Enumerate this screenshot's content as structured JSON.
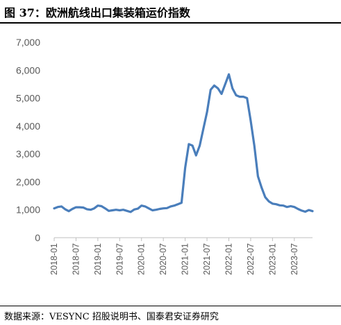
{
  "header": {
    "title": "图 37：欧洲航线出口集装箱运价指数"
  },
  "footer": {
    "source": "数据来源：VESYNC 招股说明书、国泰君安证券研究"
  },
  "colors": {
    "series": "#4A7EBB",
    "axis": "#BFBFBF",
    "tick_text": "#595959"
  },
  "chart_data": {
    "type": "line",
    "ylim": [
      0,
      7000
    ],
    "yticks": [
      0,
      1000,
      2000,
      3000,
      4000,
      5000,
      6000,
      7000
    ],
    "ytick_labels": [
      "0",
      "1,000",
      "2,000",
      "3,000",
      "4,000",
      "5,000",
      "6,000",
      "7,000"
    ],
    "xtick_labels": [
      "2018-01",
      "2018-07",
      "2019-01",
      "2019-07",
      "2020-01",
      "2020-07",
      "2021-01",
      "2021-07",
      "2022-01",
      "2022-07",
      "2023-01",
      "2023-07"
    ],
    "grid": false,
    "legend": "none",
    "series": [
      {
        "x": [
          "2018-01",
          "2018-02",
          "2018-03",
          "2018-04",
          "2018-05",
          "2018-06",
          "2018-07",
          "2018-08",
          "2018-09",
          "2018-10",
          "2018-11",
          "2018-12",
          "2019-01",
          "2019-02",
          "2019-03",
          "2019-04",
          "2019-05",
          "2019-06",
          "2019-07",
          "2019-08",
          "2019-09",
          "2019-10",
          "2019-11",
          "2019-12",
          "2020-01",
          "2020-02",
          "2020-03",
          "2020-04",
          "2020-05",
          "2020-06",
          "2020-07",
          "2020-08",
          "2020-09",
          "2020-10",
          "2020-11",
          "2020-12",
          "2021-01",
          "2021-02",
          "2021-03",
          "2021-04",
          "2021-05",
          "2021-06",
          "2021-07",
          "2021-08",
          "2021-09",
          "2021-10",
          "2021-11",
          "2021-12",
          "2022-01",
          "2022-02",
          "2022-03",
          "2022-04",
          "2022-05",
          "2022-06",
          "2022-07",
          "2022-08",
          "2022-09",
          "2022-10",
          "2022-11",
          "2022-12",
          "2023-01",
          "2023-02",
          "2023-03",
          "2023-04",
          "2023-05",
          "2023-06",
          "2023-07",
          "2023-08",
          "2023-09",
          "2023-10",
          "2023-11",
          "2023-12"
        ],
        "values": [
          1050,
          1100,
          1120,
          1020,
          950,
          1030,
          1090,
          1090,
          1080,
          1020,
          1000,
          1050,
          1150,
          1130,
          1050,
          960,
          980,
          1000,
          980,
          1000,
          960,
          920,
          1010,
          1040,
          1150,
          1120,
          1050,
          980,
          1000,
          1030,
          1050,
          1060,
          1120,
          1150,
          1200,
          1250,
          2500,
          3350,
          3300,
          2950,
          3300,
          3900,
          4500,
          5300,
          5450,
          5350,
          5150,
          5500,
          5850,
          5350,
          5100,
          5050,
          5050,
          5000,
          4200,
          3300,
          2200,
          1800,
          1450,
          1300,
          1220,
          1200,
          1160,
          1150,
          1100,
          1130,
          1100,
          1030,
          970,
          930,
          990,
          950
        ]
      }
    ]
  }
}
